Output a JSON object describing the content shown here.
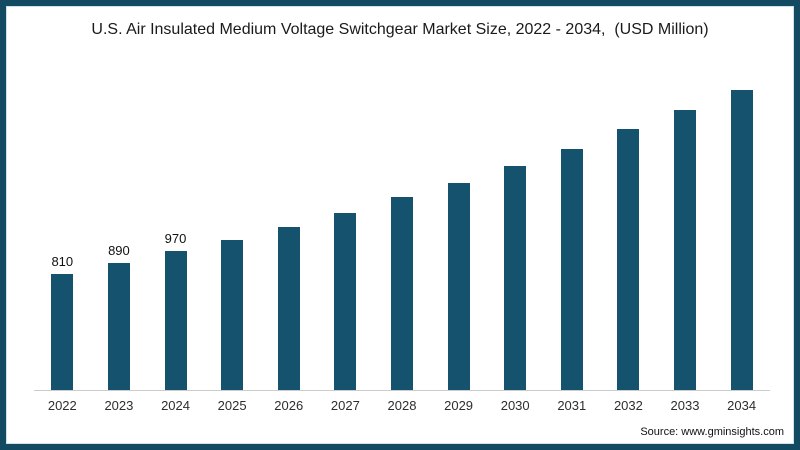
{
  "title": "U.S. Air Insulated Medium Voltage Switchgear Market Size, 2022 - 2034,  (USD Million)",
  "source": "Source: www.gminsights.com",
  "colors": {
    "bar": "#15526d",
    "frame_border": "#124a61",
    "axis_line": "#cccccc"
  },
  "chart_data": {
    "type": "bar",
    "title": "U.S. Air Insulated Medium Voltage Switchgear Market Size, 2022 - 2034,  (USD Million)",
    "unit": "USD Million",
    "xlabel": "",
    "ylabel": "",
    "grid": false,
    "legend_position": "none",
    "ylim": [
      0,
      2275
    ],
    "categories": [
      "2022",
      "2023",
      "2024",
      "2025",
      "2026",
      "2027",
      "2028",
      "2029",
      "2030",
      "2031",
      "2032",
      "2033",
      "2034"
    ],
    "values": [
      810,
      890,
      970,
      1050,
      1140,
      1240,
      1350,
      1450,
      1570,
      1690,
      1830,
      1960,
      2100
    ],
    "data_labels": [
      "810",
      "890",
      "970",
      null,
      null,
      null,
      null,
      null,
      null,
      null,
      null,
      null,
      null
    ]
  }
}
